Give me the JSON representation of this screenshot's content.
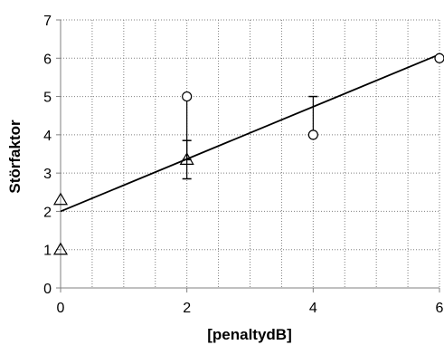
{
  "chart_data": {
    "type": "scatter",
    "title": "",
    "xlabel": "[penaltydB]",
    "ylabel": "Störfaktor",
    "xlim": [
      0,
      6
    ],
    "ylim": [
      0,
      7
    ],
    "x_ticks": [
      0,
      2,
      4,
      6
    ],
    "y_ticks": [
      0,
      1,
      2,
      3,
      4,
      5,
      6,
      7
    ],
    "x_tick_labels": [
      "0",
      "2",
      "4",
      "6"
    ],
    "y_tick_labels": [
      "0",
      "1",
      "2",
      "3",
      "4",
      "5",
      "6",
      "7"
    ],
    "x_minor_step": 0.5,
    "grid": true,
    "legend": "none",
    "series": [
      {
        "marker": "circle",
        "points": [
          {
            "x": 2,
            "y": 5
          },
          {
            "x": 4,
            "y": 4
          },
          {
            "x": 6,
            "y": 6
          }
        ]
      },
      {
        "marker": "triangle",
        "points": [
          {
            "x": 0,
            "y": 2.3
          },
          {
            "x": 0,
            "y": 1.0
          },
          {
            "x": 2,
            "y": 3.35
          }
        ]
      }
    ],
    "error_bars": [
      {
        "x": 2,
        "low": 3.35,
        "high": 5.0,
        "caps": "low"
      },
      {
        "x": 2,
        "low": 2.85,
        "high": 3.85,
        "caps": "both"
      },
      {
        "x": 4,
        "low": 4.0,
        "high": 5.0,
        "caps": "high"
      }
    ],
    "trendline": {
      "x": [
        0,
        6
      ],
      "y": [
        2.0,
        6.1
      ]
    },
    "colors": {
      "line": "#000000",
      "grid": "#808080",
      "marker": "#000000"
    }
  }
}
